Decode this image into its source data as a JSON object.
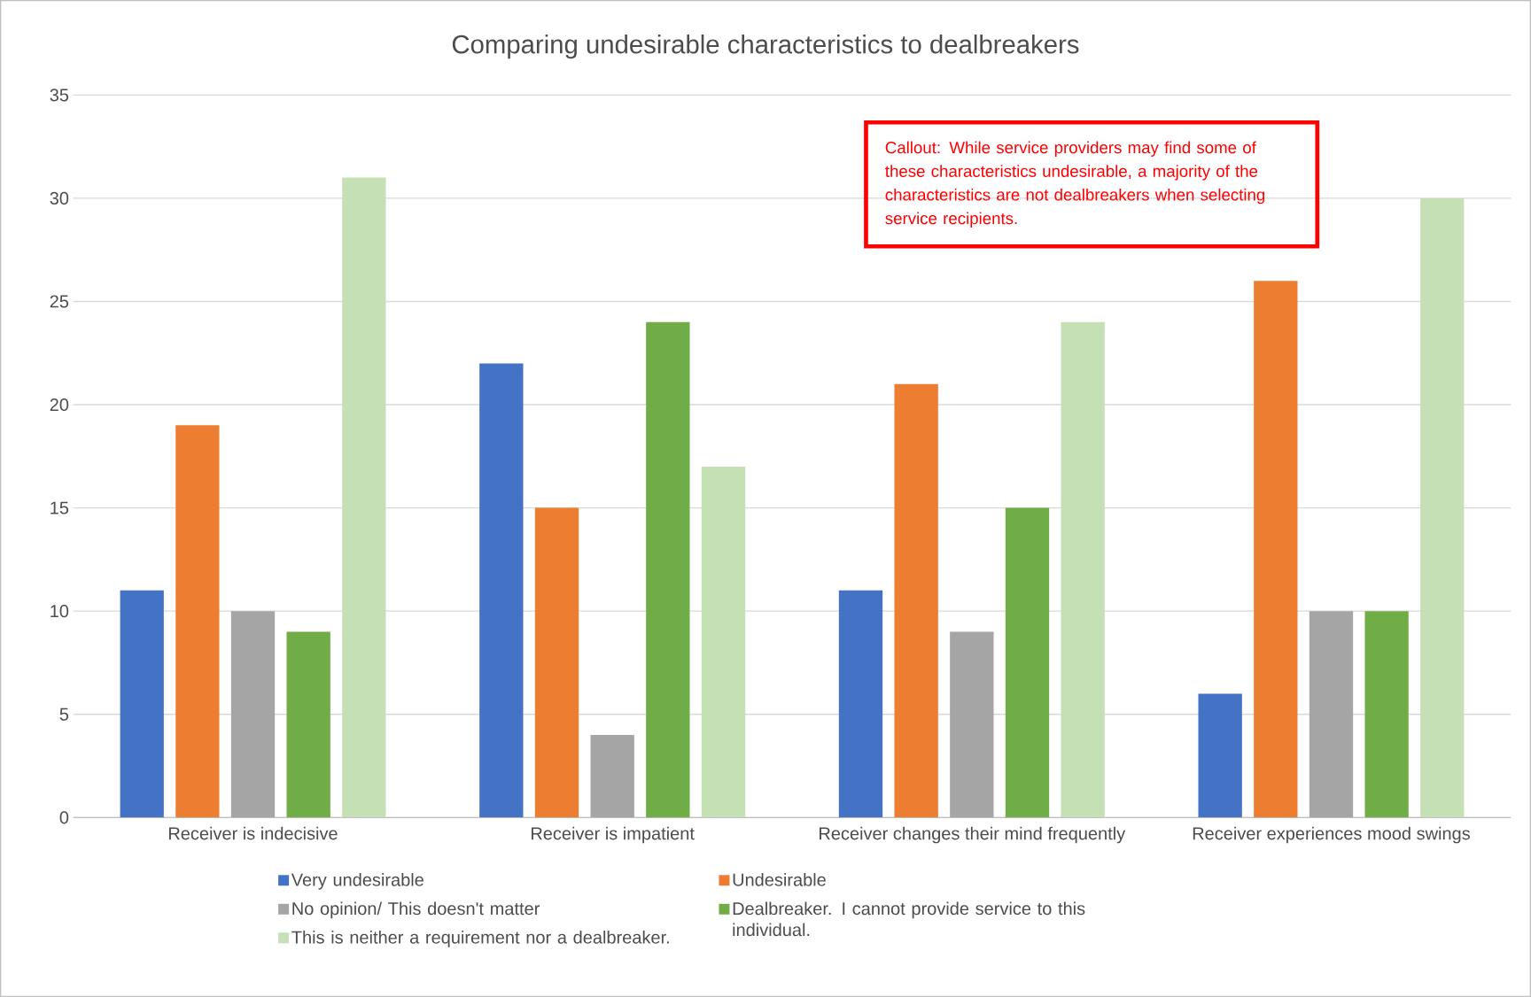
{
  "chart_data": {
    "type": "bar",
    "title": "Comparing undesirable characteristics to dealbreakers",
    "categories": [
      "Receiver is indecisive",
      "Receiver is impatient",
      "Receiver changes their mind frequently",
      "Receiver experiences mood swings"
    ],
    "series": [
      {
        "name": "Very undesirable",
        "color": "#4472c4",
        "values": [
          11,
          22,
          11,
          6
        ]
      },
      {
        "name": "Undesirable",
        "color": "#ed7d31",
        "values": [
          19,
          15,
          21,
          26
        ]
      },
      {
        "name": "No opinion/ This doesn't matter",
        "color": "#a5a5a5",
        "values": [
          10,
          4,
          9,
          10
        ]
      },
      {
        "name": "Dealbreaker. I cannot provide service to this individual.",
        "color": "#70ad47",
        "values": [
          9,
          24,
          15,
          10
        ]
      },
      {
        "name": "This is neither a requirement nor a dealbreaker.",
        "color": "#c5e0b4",
        "values": [
          31,
          17,
          24,
          30
        ]
      }
    ],
    "ylim": [
      0,
      35
    ],
    "yticks": [
      0,
      5,
      10,
      15,
      20,
      25,
      30,
      35
    ],
    "grid": "y",
    "legend": "bottom",
    "annotations": [
      "Callout: While service providers may find some of these characteristics undesirable, a majority of the characteristics are not dealbreakers when selecting service recipients."
    ]
  }
}
